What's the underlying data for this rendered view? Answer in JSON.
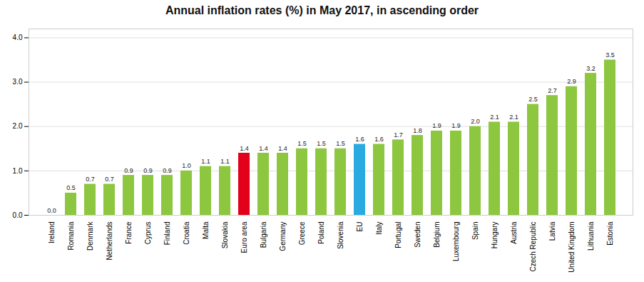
{
  "chart_data": {
    "type": "bar",
    "title": "Annual inflation rates (%) in May 2017, in ascending order",
    "categories": [
      "Ireland",
      "Romania",
      "Denmark",
      "Netherlands",
      "France",
      "Cyprus",
      "Finland",
      "Croatia",
      "Malta",
      "Slovakia",
      "Euro area",
      "Bulgaria",
      "Germany",
      "Greece",
      "Poland",
      "Slovenia",
      "EU",
      "Italy",
      "Portugal",
      "Sweden",
      "Belgium",
      "Luxembourg",
      "Spain",
      "Hungary",
      "Austria",
      "Czech Republic",
      "Latvia",
      "United Kingdom",
      "Lithuania",
      "Estonia"
    ],
    "values": [
      0.0,
      0.5,
      0.7,
      0.7,
      0.9,
      0.9,
      0.9,
      1.0,
      1.1,
      1.1,
      1.4,
      1.4,
      1.4,
      1.5,
      1.5,
      1.5,
      1.6,
      1.6,
      1.7,
      1.8,
      1.9,
      1.9,
      2.0,
      2.1,
      2.1,
      2.5,
      2.7,
      2.9,
      3.2,
      3.5
    ],
    "value_labels": [
      "0.0",
      "0.5",
      "0.7",
      "0.7",
      "0.9",
      "0.9",
      "0.9",
      "1.0",
      "1.1",
      "1.1",
      "1.4",
      "1.4",
      "1.4",
      "1.5",
      "1.5",
      "1.5",
      "1.6",
      "1.6",
      "1.7",
      "1.8",
      "1.9",
      "1.9",
      "2.0",
      "2.1",
      "2.1",
      "2.5",
      "2.7",
      "2.9",
      "3.2",
      "3.5"
    ],
    "colors": [
      "#8dc63f",
      "#8dc63f",
      "#8dc63f",
      "#8dc63f",
      "#8dc63f",
      "#8dc63f",
      "#8dc63f",
      "#8dc63f",
      "#8dc63f",
      "#8dc63f",
      "#e3001b",
      "#8dc63f",
      "#8dc63f",
      "#8dc63f",
      "#8dc63f",
      "#8dc63f",
      "#29abe2",
      "#8dc63f",
      "#8dc63f",
      "#8dc63f",
      "#8dc63f",
      "#8dc63f",
      "#8dc63f",
      "#8dc63f",
      "#8dc63f",
      "#8dc63f",
      "#8dc63f",
      "#8dc63f",
      "#8dc63f",
      "#8dc63f"
    ],
    "ylim": [
      0,
      4.2
    ],
    "yticks": [
      0,
      1,
      2,
      3,
      4
    ],
    "grid": true,
    "data_labels": true
  }
}
